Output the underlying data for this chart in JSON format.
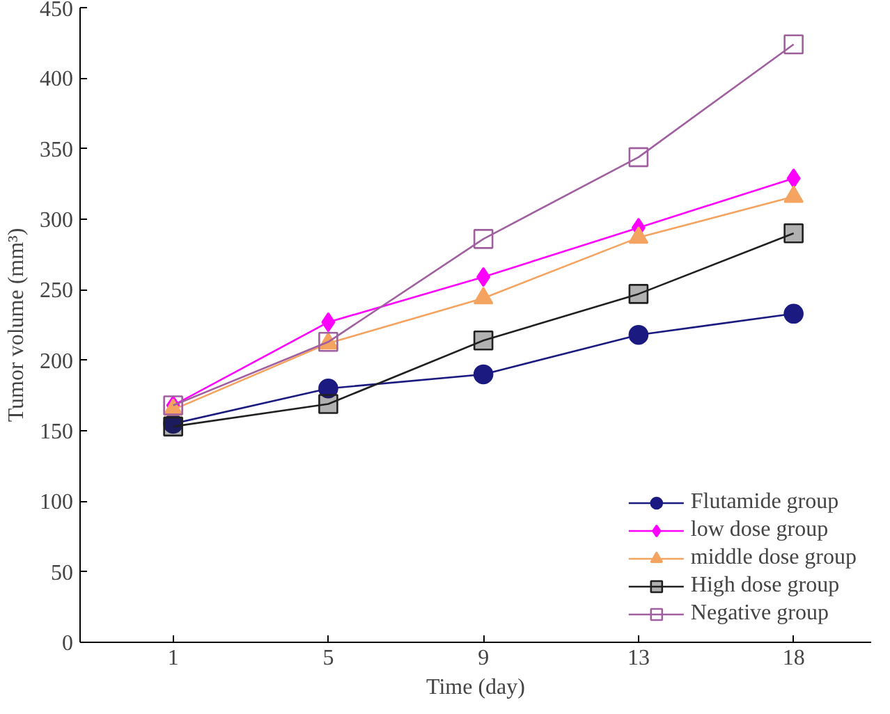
{
  "chart_data": {
    "type": "line",
    "xlabel": "Time (day)",
    "ylabel": "Tumor volume (mm³)",
    "categories": [
      "1",
      "5",
      "9",
      "13",
      "18"
    ],
    "ylim": [
      0,
      450
    ],
    "yticks": [
      0,
      50,
      100,
      150,
      200,
      250,
      300,
      350,
      400,
      450
    ],
    "grid": false,
    "legend": "bottom right",
    "series": [
      {
        "name": "Flutamide group",
        "color": "#1a1a80",
        "marker": "circle",
        "values": [
          155,
          180,
          190,
          218,
          233
        ]
      },
      {
        "name": "low dose group",
        "color": "#ff00ff",
        "marker": "diamond",
        "values": [
          168,
          227,
          259,
          294,
          329
        ]
      },
      {
        "name": "middle dose group",
        "color": "#f4a460",
        "marker": "triangle",
        "values": [
          165,
          212,
          244,
          287,
          316
        ]
      },
      {
        "name": "High dose group",
        "color": "#202020",
        "marker": "square",
        "values": [
          153,
          169,
          214,
          247,
          290
        ]
      },
      {
        "name": "Negative group",
        "color": "#a060a0",
        "marker": "square_open",
        "values": [
          168,
          213,
          286,
          344,
          424
        ]
      }
    ]
  }
}
